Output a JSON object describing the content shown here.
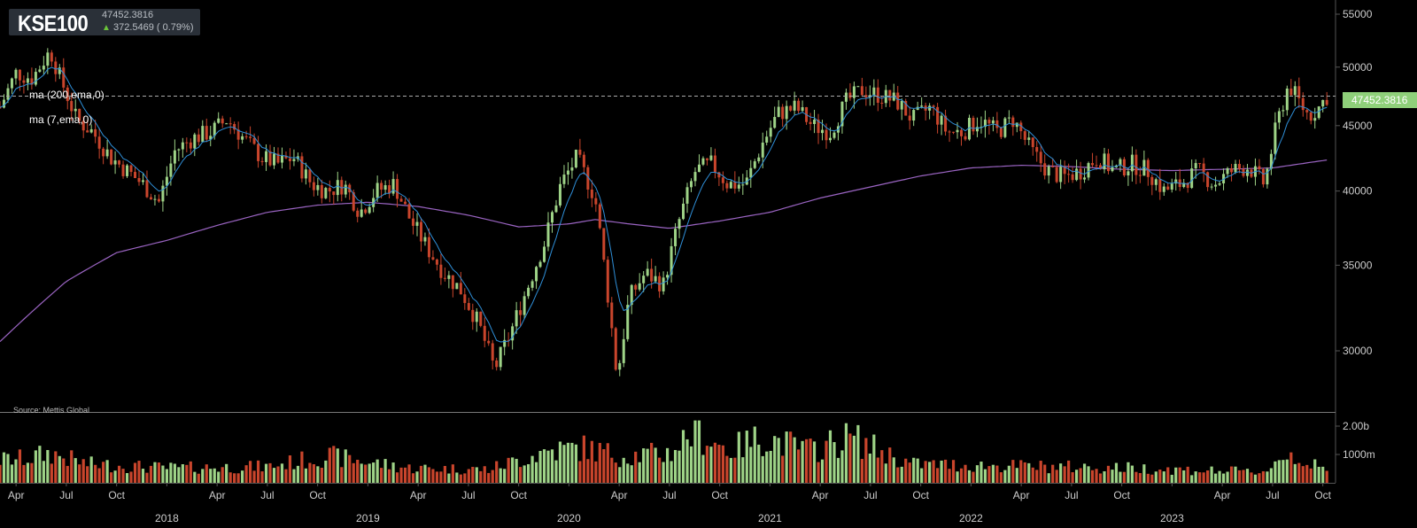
{
  "header": {
    "ticker": "KSE100",
    "last_price": "47452.3816",
    "change": "372.5469 ( 0.79%)"
  },
  "legend": {
    "ma_long": "ma (200,ema,0)",
    "ma_short": "ma (7,ema,0)"
  },
  "source": "Source: Mettis Global",
  "price_badge": "47452.3816",
  "colors": {
    "up": "#9ed387",
    "down": "#c9452c",
    "ma_short": "#2f8fd8",
    "ma_long": "#9a64c2",
    "background": "#000000",
    "grid": "#555555",
    "badge": "#8fd07a"
  },
  "chart_data": {
    "type": "candlestick",
    "interval": "weekly",
    "x_range": [
      "2017-03",
      "2023-10"
    ],
    "y_price_ticks": [
      30000,
      35000,
      40000,
      45000,
      50000,
      55000
    ],
    "y_volume_ticks": [
      "1000m",
      "2.00b"
    ],
    "x_month_ticks": [
      "Apr",
      "Jul",
      "Oct",
      "Apr",
      "Jul",
      "Oct",
      "Apr",
      "Jul",
      "Oct",
      "Apr",
      "Jul",
      "Oct",
      "Apr",
      "Jul",
      "Oct",
      "Apr",
      "Jul",
      "Oct",
      "Apr",
      "Jul",
      "Oct"
    ],
    "x_year_ticks": [
      "2018",
      "2019",
      "2020",
      "2021",
      "2022",
      "2023"
    ],
    "last_close": 47452.3816,
    "close_path": [
      {
        "t": 2017.17,
        "v": 46500
      },
      {
        "t": 2017.25,
        "v": 49500
      },
      {
        "t": 2017.33,
        "v": 49000
      },
      {
        "t": 2017.42,
        "v": 51500
      },
      {
        "t": 2017.47,
        "v": 49000
      },
      {
        "t": 2017.55,
        "v": 45500
      },
      {
        "t": 2017.63,
        "v": 44500
      },
      {
        "t": 2017.72,
        "v": 42500
      },
      {
        "t": 2017.8,
        "v": 41500
      },
      {
        "t": 2017.88,
        "v": 40500
      },
      {
        "t": 2017.96,
        "v": 39200
      },
      {
        "t": 2018.04,
        "v": 43000
      },
      {
        "t": 2018.13,
        "v": 44000
      },
      {
        "t": 2018.22,
        "v": 44500
      },
      {
        "t": 2018.3,
        "v": 45500
      },
      {
        "t": 2018.38,
        "v": 44000
      },
      {
        "t": 2018.47,
        "v": 42500
      },
      {
        "t": 2018.55,
        "v": 42000
      },
      {
        "t": 2018.63,
        "v": 42500
      },
      {
        "t": 2018.72,
        "v": 40500
      },
      {
        "t": 2018.8,
        "v": 40000
      },
      {
        "t": 2018.88,
        "v": 40500
      },
      {
        "t": 2018.96,
        "v": 38500
      },
      {
        "t": 2019.04,
        "v": 40000
      },
      {
        "t": 2019.13,
        "v": 40500
      },
      {
        "t": 2019.21,
        "v": 38000
      },
      {
        "t": 2019.3,
        "v": 36000
      },
      {
        "t": 2019.38,
        "v": 34500
      },
      {
        "t": 2019.46,
        "v": 33500
      },
      {
        "t": 2019.55,
        "v": 31500
      },
      {
        "t": 2019.63,
        "v": 29000
      },
      {
        "t": 2019.71,
        "v": 31000
      },
      {
        "t": 2019.79,
        "v": 33500
      },
      {
        "t": 2019.88,
        "v": 36500
      },
      {
        "t": 2019.96,
        "v": 40500
      },
      {
        "t": 2020.04,
        "v": 42500
      },
      {
        "t": 2020.13,
        "v": 39500
      },
      {
        "t": 2020.19,
        "v": 33500
      },
      {
        "t": 2020.24,
        "v": 28500
      },
      {
        "t": 2020.3,
        "v": 33000
      },
      {
        "t": 2020.38,
        "v": 34500
      },
      {
        "t": 2020.47,
        "v": 33800
      },
      {
        "t": 2020.55,
        "v": 38000
      },
      {
        "t": 2020.63,
        "v": 41500
      },
      {
        "t": 2020.71,
        "v": 42000
      },
      {
        "t": 2020.79,
        "v": 40500
      },
      {
        "t": 2020.88,
        "v": 40500
      },
      {
        "t": 2020.96,
        "v": 43500
      },
      {
        "t": 2021.04,
        "v": 46000
      },
      {
        "t": 2021.13,
        "v": 46500
      },
      {
        "t": 2021.21,
        "v": 45000
      },
      {
        "t": 2021.3,
        "v": 44500
      },
      {
        "t": 2021.38,
        "v": 47000
      },
      {
        "t": 2021.46,
        "v": 48000
      },
      {
        "t": 2021.55,
        "v": 47500
      },
      {
        "t": 2021.63,
        "v": 47000
      },
      {
        "t": 2021.71,
        "v": 45500
      },
      {
        "t": 2021.8,
        "v": 46500
      },
      {
        "t": 2021.88,
        "v": 44500
      },
      {
        "t": 2021.96,
        "v": 44500
      },
      {
        "t": 2022.04,
        "v": 45500
      },
      {
        "t": 2022.13,
        "v": 44500
      },
      {
        "t": 2022.21,
        "v": 45500
      },
      {
        "t": 2022.3,
        "v": 43000
      },
      {
        "t": 2022.38,
        "v": 41500
      },
      {
        "t": 2022.46,
        "v": 41000
      },
      {
        "t": 2022.55,
        "v": 41500
      },
      {
        "t": 2022.63,
        "v": 42500
      },
      {
        "t": 2022.71,
        "v": 41500
      },
      {
        "t": 2022.8,
        "v": 42000
      },
      {
        "t": 2022.88,
        "v": 41500
      },
      {
        "t": 2022.96,
        "v": 40000
      },
      {
        "t": 2023.04,
        "v": 40500
      },
      {
        "t": 2023.13,
        "v": 41500
      },
      {
        "t": 2023.21,
        "v": 40500
      },
      {
        "t": 2023.3,
        "v": 41500
      },
      {
        "t": 2023.38,
        "v": 41800
      },
      {
        "t": 2023.46,
        "v": 40500
      },
      {
        "t": 2023.52,
        "v": 45000
      },
      {
        "t": 2023.58,
        "v": 48500
      },
      {
        "t": 2023.63,
        "v": 47000
      },
      {
        "t": 2023.68,
        "v": 45800
      },
      {
        "t": 2023.73,
        "v": 46500
      },
      {
        "t": 2023.77,
        "v": 47452
      }
    ],
    "ma200_path": [
      {
        "t": 2017.17,
        "v": 30500
      },
      {
        "t": 2017.5,
        "v": 34000
      },
      {
        "t": 2017.75,
        "v": 35800
      },
      {
        "t": 2018.0,
        "v": 36600
      },
      {
        "t": 2018.25,
        "v": 37600
      },
      {
        "t": 2018.5,
        "v": 38500
      },
      {
        "t": 2018.75,
        "v": 39000
      },
      {
        "t": 2019.0,
        "v": 39200
      },
      {
        "t": 2019.25,
        "v": 38900
      },
      {
        "t": 2019.5,
        "v": 38300
      },
      {
        "t": 2019.75,
        "v": 37500
      },
      {
        "t": 2020.0,
        "v": 37700
      },
      {
        "t": 2020.13,
        "v": 38000
      },
      {
        "t": 2020.3,
        "v": 37700
      },
      {
        "t": 2020.5,
        "v": 37400
      },
      {
        "t": 2020.75,
        "v": 37900
      },
      {
        "t": 2021.0,
        "v": 38500
      },
      {
        "t": 2021.25,
        "v": 39500
      },
      {
        "t": 2021.5,
        "v": 40300
      },
      {
        "t": 2021.75,
        "v": 41100
      },
      {
        "t": 2022.0,
        "v": 41700
      },
      {
        "t": 2022.25,
        "v": 41900
      },
      {
        "t": 2022.5,
        "v": 41800
      },
      {
        "t": 2022.75,
        "v": 41600
      },
      {
        "t": 2023.0,
        "v": 41500
      },
      {
        "t": 2023.25,
        "v": 41600
      },
      {
        "t": 2023.5,
        "v": 41700
      },
      {
        "t": 2023.77,
        "v": 42300
      }
    ],
    "volume_path": [
      {
        "t": 2017.17,
        "v": 850
      },
      {
        "t": 2017.3,
        "v": 900
      },
      {
        "t": 2017.42,
        "v": 1100
      },
      {
        "t": 2017.6,
        "v": 700
      },
      {
        "t": 2018.0,
        "v": 550
      },
      {
        "t": 2018.5,
        "v": 600
      },
      {
        "t": 2018.8,
        "v": 1000
      },
      {
        "t": 2019.2,
        "v": 550
      },
      {
        "t": 2019.6,
        "v": 500
      },
      {
        "t": 2019.9,
        "v": 1200
      },
      {
        "t": 2020.08,
        "v": 1300
      },
      {
        "t": 2020.25,
        "v": 1000
      },
      {
        "t": 2020.5,
        "v": 1100
      },
      {
        "t": 2020.62,
        "v": 1950
      },
      {
        "t": 2020.8,
        "v": 1200
      },
      {
        "t": 2020.96,
        "v": 1700
      },
      {
        "t": 2021.2,
        "v": 1200
      },
      {
        "t": 2021.4,
        "v": 1700
      },
      {
        "t": 2021.5,
        "v": 1350
      },
      {
        "t": 2021.7,
        "v": 700
      },
      {
        "t": 2022.0,
        "v": 650
      },
      {
        "t": 2022.4,
        "v": 600
      },
      {
        "t": 2022.8,
        "v": 550
      },
      {
        "t": 2023.2,
        "v": 450
      },
      {
        "t": 2023.45,
        "v": 400
      },
      {
        "t": 2023.58,
        "v": 1100
      },
      {
        "t": 2023.77,
        "v": 400
      }
    ]
  }
}
